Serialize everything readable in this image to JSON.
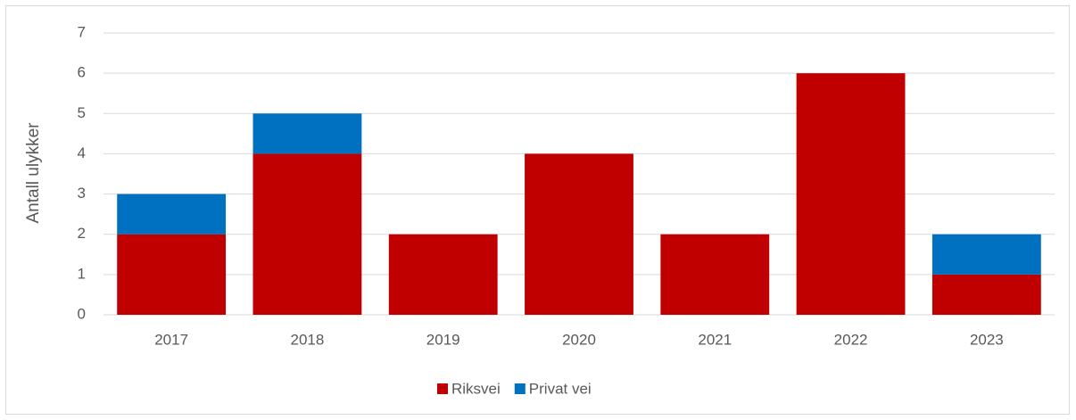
{
  "chart_data": {
    "type": "stacked_bar",
    "y_label": "Antall ulykker",
    "categories": [
      "2017",
      "2018",
      "2019",
      "2020",
      "2021",
      "2022",
      "2023"
    ],
    "series": [
      {
        "name": "Riksvei",
        "color": "#c00000",
        "values": [
          2,
          4,
          2,
          4,
          2,
          6,
          1
        ]
      },
      {
        "name": "Privat vei",
        "color": "#0070c0",
        "values": [
          1,
          1,
          0,
          0,
          0,
          0,
          1
        ]
      }
    ],
    "ylim": [
      0,
      7
    ],
    "yticks": [
      0,
      1,
      2,
      3,
      4,
      5,
      6,
      7
    ],
    "grid": true,
    "legend": "bottom"
  }
}
